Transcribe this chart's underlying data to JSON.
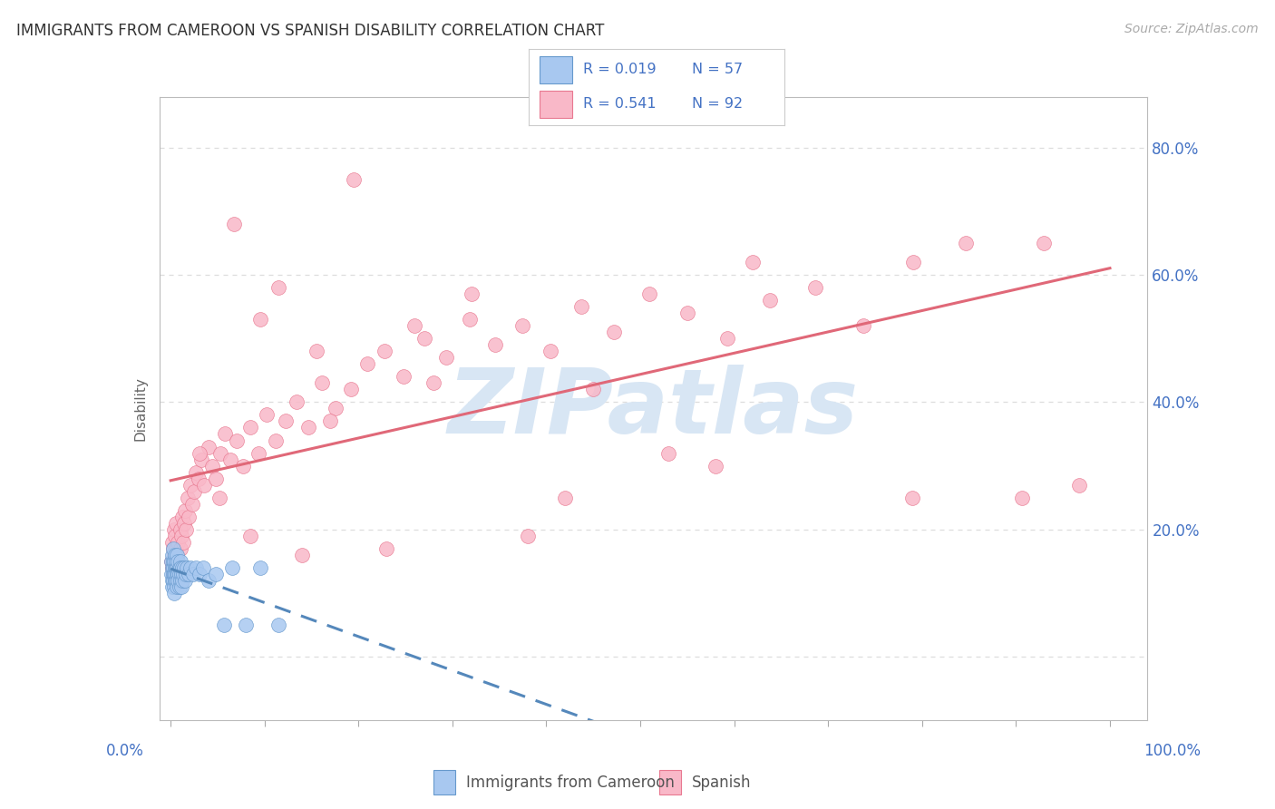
{
  "title": "IMMIGRANTS FROM CAMEROON VS SPANISH DISABILITY CORRELATION CHART",
  "source": "Source: ZipAtlas.com",
  "ylabel": "Disability",
  "legend_label1": "Immigrants from Cameroon",
  "legend_label2": "Spanish",
  "r1": "0.019",
  "n1": "57",
  "r2": "0.541",
  "n2": "92",
  "color_blue_fill": "#A8C8F0",
  "color_pink_fill": "#F9B8C8",
  "color_blue_edge": "#6699CC",
  "color_pink_edge": "#E87890",
  "color_blue_line": "#5588BB",
  "color_pink_line": "#E06878",
  "color_accent": "#4472C4",
  "color_text": "#333333",
  "color_source": "#AAAAAA",
  "color_watermark": "#D8E6F4",
  "grid_color": "#DDDDDD",
  "background": "#FFFFFF",
  "y_ticks": [
    0.0,
    0.2,
    0.4,
    0.6,
    0.8
  ],
  "y_tick_labels": [
    "",
    "20.0%",
    "40.0%",
    "60.0%",
    "80.0%"
  ],
  "blue_x": [
    0.001,
    0.001,
    0.002,
    0.002,
    0.002,
    0.002,
    0.003,
    0.003,
    0.003,
    0.003,
    0.003,
    0.004,
    0.004,
    0.004,
    0.004,
    0.005,
    0.005,
    0.005,
    0.005,
    0.006,
    0.006,
    0.006,
    0.007,
    0.007,
    0.007,
    0.007,
    0.008,
    0.008,
    0.008,
    0.009,
    0.009,
    0.009,
    0.01,
    0.01,
    0.01,
    0.011,
    0.011,
    0.012,
    0.012,
    0.013,
    0.014,
    0.015,
    0.016,
    0.017,
    0.019,
    0.021,
    0.024,
    0.027,
    0.031,
    0.035,
    0.04,
    0.048,
    0.057,
    0.065,
    0.08,
    0.095,
    0.115
  ],
  "blue_y": [
    0.13,
    0.15,
    0.12,
    0.14,
    0.16,
    0.11,
    0.13,
    0.15,
    0.12,
    0.14,
    0.17,
    0.11,
    0.13,
    0.15,
    0.1,
    0.14,
    0.12,
    0.16,
    0.13,
    0.14,
    0.12,
    0.15,
    0.13,
    0.11,
    0.14,
    0.16,
    0.13,
    0.15,
    0.12,
    0.14,
    0.11,
    0.13,
    0.15,
    0.12,
    0.14,
    0.13,
    0.11,
    0.14,
    0.12,
    0.13,
    0.14,
    0.12,
    0.13,
    0.14,
    0.13,
    0.14,
    0.13,
    0.14,
    0.13,
    0.14,
    0.12,
    0.13,
    0.05,
    0.14,
    0.05,
    0.14,
    0.05
  ],
  "pink_x": [
    0.001,
    0.002,
    0.002,
    0.003,
    0.003,
    0.004,
    0.004,
    0.005,
    0.005,
    0.006,
    0.006,
    0.007,
    0.008,
    0.009,
    0.01,
    0.01,
    0.011,
    0.012,
    0.013,
    0.014,
    0.015,
    0.016,
    0.018,
    0.019,
    0.021,
    0.023,
    0.025,
    0.027,
    0.03,
    0.033,
    0.036,
    0.04,
    0.044,
    0.048,
    0.053,
    0.058,
    0.064,
    0.07,
    0.077,
    0.085,
    0.093,
    0.102,
    0.112,
    0.122,
    0.134,
    0.147,
    0.161,
    0.176,
    0.192,
    0.209,
    0.228,
    0.248,
    0.27,
    0.293,
    0.318,
    0.345,
    0.374,
    0.404,
    0.437,
    0.472,
    0.51,
    0.55,
    0.593,
    0.638,
    0.686,
    0.737,
    0.791,
    0.847,
    0.906,
    0.967,
    0.031,
    0.052,
    0.085,
    0.14,
    0.23,
    0.38,
    0.26,
    0.17,
    0.42,
    0.58,
    0.32,
    0.095,
    0.155,
    0.28,
    0.45,
    0.62,
    0.79,
    0.93,
    0.067,
    0.115,
    0.195,
    0.53
  ],
  "pink_y": [
    0.15,
    0.18,
    0.14,
    0.17,
    0.13,
    0.16,
    0.2,
    0.15,
    0.19,
    0.17,
    0.21,
    0.16,
    0.18,
    0.14,
    0.2,
    0.17,
    0.19,
    0.22,
    0.18,
    0.21,
    0.23,
    0.2,
    0.25,
    0.22,
    0.27,
    0.24,
    0.26,
    0.29,
    0.28,
    0.31,
    0.27,
    0.33,
    0.3,
    0.28,
    0.32,
    0.35,
    0.31,
    0.34,
    0.3,
    0.36,
    0.32,
    0.38,
    0.34,
    0.37,
    0.4,
    0.36,
    0.43,
    0.39,
    0.42,
    0.46,
    0.48,
    0.44,
    0.5,
    0.47,
    0.53,
    0.49,
    0.52,
    0.48,
    0.55,
    0.51,
    0.57,
    0.54,
    0.5,
    0.56,
    0.58,
    0.52,
    0.62,
    0.65,
    0.25,
    0.27,
    0.32,
    0.25,
    0.19,
    0.16,
    0.17,
    0.19,
    0.52,
    0.37,
    0.25,
    0.3,
    0.57,
    0.53,
    0.48,
    0.43,
    0.42,
    0.62,
    0.25,
    0.65,
    0.68,
    0.58,
    0.75,
    0.32
  ]
}
